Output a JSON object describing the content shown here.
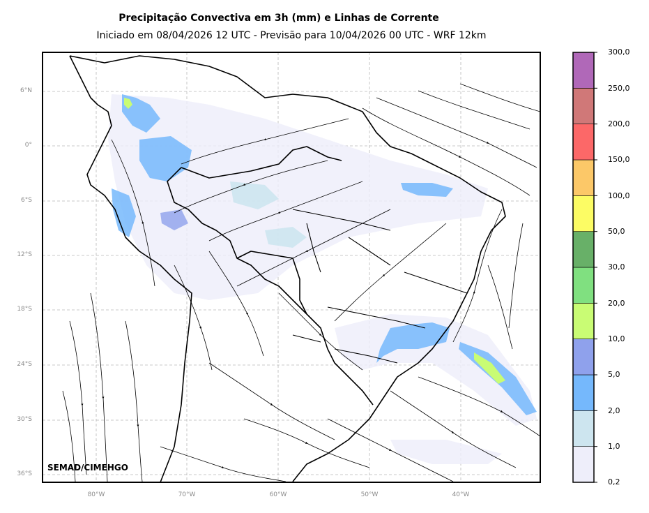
{
  "title": "Precipitação Convectiva em 3h (mm) e Linhas de Corrente",
  "subtitle": "Iniciado em 08/04/2026 12 UTC - Previsão para 10/04/2026 00 UTC - WRF 12km",
  "credit": "SEMAD/CIMEHGO",
  "lat_labels": [
    "6°N",
    "0°",
    "6°S",
    "12°S",
    "18°S",
    "24°S",
    "30°S",
    "36°S"
  ],
  "lon_labels": [
    "80°W",
    "70°W",
    "60°W",
    "50°W",
    "40°W"
  ],
  "colorbar": {
    "labels": [
      "0,2",
      "1,0",
      "2,0",
      "5,0",
      "10,0",
      "20,0",
      "30,0",
      "50,0",
      "100,0",
      "150,0",
      "200,0",
      "250,0",
      "300,0"
    ],
    "colors": [
      "#eeeefa",
      "#cde5ef",
      "#75b8fc",
      "#8fa1ec",
      "#c9fc74",
      "#80e080",
      "#68b068",
      "#fcfc64",
      "#fcc868",
      "#fc6868",
      "#d07878",
      "#b068b8"
    ]
  }
}
